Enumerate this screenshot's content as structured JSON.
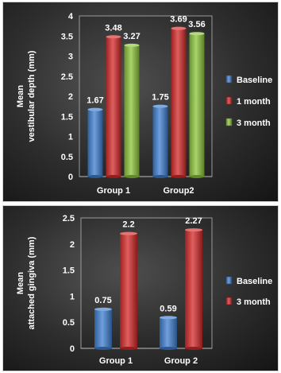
{
  "colors": {
    "baseline": "#3f7fd0",
    "one_month": "#d42a2a",
    "three_month": "#8cc43a"
  },
  "chart_data": [
    {
      "type": "bar",
      "title": "",
      "ylabel_lines": [
        "Mean",
        "vestibular depth (mm)"
      ],
      "xlabel": "",
      "ylim": [
        0,
        4
      ],
      "yticks": [
        "0",
        "0.5",
        "1",
        "1.5",
        "2",
        "2.5",
        "3",
        "3.5",
        "4"
      ],
      "ytick_values": [
        0,
        0.5,
        1,
        1.5,
        2,
        2.5,
        3,
        3.5,
        4
      ],
      "categories": [
        "Group 1",
        "Group2"
      ],
      "legend_position": "right",
      "series": [
        {
          "name": "Baseline",
          "values": [
            1.67,
            1.75
          ],
          "labels": [
            "1.67",
            "1.75"
          ],
          "color_key": "baseline"
        },
        {
          "name": "1 month",
          "values": [
            3.48,
            3.69
          ],
          "labels": [
            "3.48",
            "3.69"
          ],
          "color_key": "one_month"
        },
        {
          "name": "3 month",
          "values": [
            3.27,
            3.56
          ],
          "labels": [
            "3.27",
            "3.56"
          ],
          "color_key": "three_month"
        }
      ]
    },
    {
      "type": "bar",
      "title": "",
      "ylabel_lines": [
        "Mean",
        "attached gingiva (mm)"
      ],
      "xlabel": "",
      "ylim": [
        0,
        2.5
      ],
      "yticks": [
        "0",
        "0.5",
        "1",
        "1.5",
        "2",
        "2.5"
      ],
      "ytick_values": [
        0,
        0.5,
        1,
        1.5,
        2,
        2.5
      ],
      "categories": [
        "Group 1",
        "Group 2"
      ],
      "legend_position": "right",
      "series": [
        {
          "name": "Baseline",
          "values": [
            0.75,
            0.59
          ],
          "labels": [
            "0.75",
            "0.59"
          ],
          "color_key": "baseline"
        },
        {
          "name": "3 month",
          "values": [
            2.2,
            2.27
          ],
          "labels": [
            "2.2",
            "2.27"
          ],
          "color_key": "one_month"
        }
      ]
    }
  ]
}
